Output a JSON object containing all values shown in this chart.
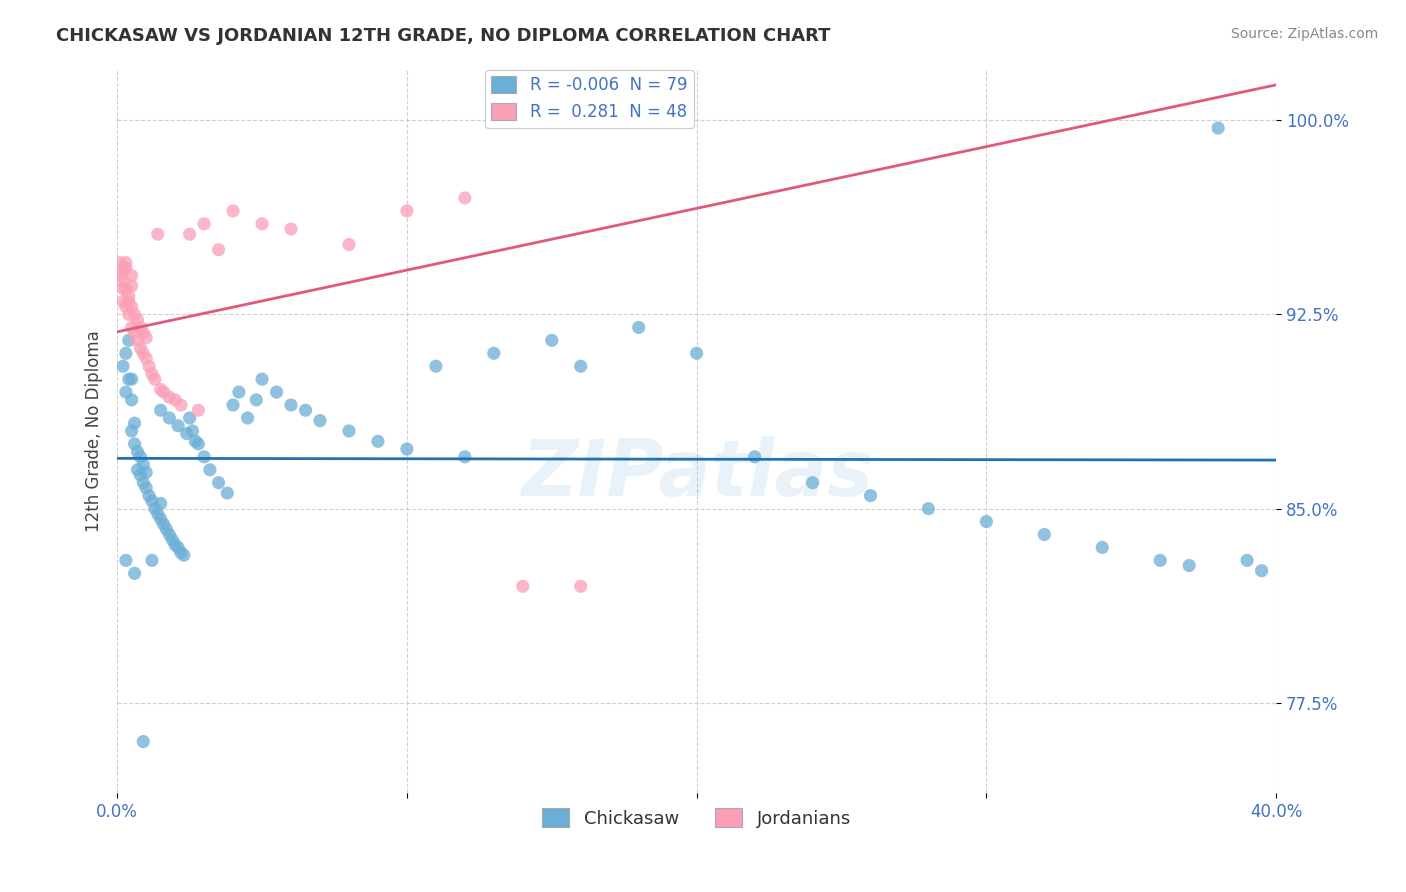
{
  "title": "CHICKASAW VS JORDANIAN 12TH GRADE, NO DIPLOMA CORRELATION CHART",
  "source": "Source: ZipAtlas.com",
  "ylabel": "12th Grade, No Diploma",
  "xlim": [
    0.0,
    0.4
  ],
  "ylim": [
    0.74,
    1.02
  ],
  "yticks": [
    0.775,
    0.85,
    0.925,
    1.0
  ],
  "ytick_labels": [
    "77.5%",
    "85.0%",
    "92.5%",
    "100.0%"
  ],
  "legend_blue_r": "-0.006",
  "legend_blue_n": "79",
  "legend_pink_r": "0.281",
  "legend_pink_n": "48",
  "blue_color": "#6baed6",
  "pink_color": "#fa9fb5",
  "trendline_blue_color": "#2171b5",
  "trendline_pink_color": "#e05a7a",
  "watermark": "ZIPatlas",
  "chickasaw_x": [
    0.002,
    0.003,
    0.003,
    0.004,
    0.004,
    0.005,
    0.005,
    0.005,
    0.006,
    0.006,
    0.007,
    0.007,
    0.008,
    0.008,
    0.009,
    0.009,
    0.01,
    0.01,
    0.011,
    0.012,
    0.013,
    0.014,
    0.015,
    0.015,
    0.016,
    0.017,
    0.018,
    0.019,
    0.02,
    0.021,
    0.022,
    0.023,
    0.025,
    0.026,
    0.028,
    0.03,
    0.032,
    0.035,
    0.038,
    0.04,
    0.042,
    0.045,
    0.048,
    0.05,
    0.055,
    0.06,
    0.065,
    0.07,
    0.08,
    0.09,
    0.1,
    0.11,
    0.12,
    0.13,
    0.15,
    0.16,
    0.18,
    0.2,
    0.22,
    0.24,
    0.26,
    0.28,
    0.3,
    0.32,
    0.34,
    0.36,
    0.37,
    0.38,
    0.39,
    0.395,
    0.003,
    0.006,
    0.009,
    0.012,
    0.015,
    0.018,
    0.021,
    0.024,
    0.027
  ],
  "chickasaw_y": [
    0.905,
    0.91,
    0.895,
    0.9,
    0.915,
    0.88,
    0.892,
    0.9,
    0.875,
    0.883,
    0.865,
    0.872,
    0.863,
    0.87,
    0.86,
    0.867,
    0.858,
    0.864,
    0.855,
    0.853,
    0.85,
    0.848,
    0.846,
    0.852,
    0.844,
    0.842,
    0.84,
    0.838,
    0.836,
    0.835,
    0.833,
    0.832,
    0.885,
    0.88,
    0.875,
    0.87,
    0.865,
    0.86,
    0.856,
    0.89,
    0.895,
    0.885,
    0.892,
    0.9,
    0.895,
    0.89,
    0.888,
    0.884,
    0.88,
    0.876,
    0.873,
    0.905,
    0.87,
    0.91,
    0.915,
    0.905,
    0.92,
    0.91,
    0.87,
    0.86,
    0.855,
    0.85,
    0.845,
    0.84,
    0.835,
    0.83,
    0.828,
    0.997,
    0.83,
    0.826,
    0.83,
    0.825,
    0.76,
    0.83,
    0.888,
    0.885,
    0.882,
    0.879,
    0.876
  ],
  "jordanian_x": [
    0.001,
    0.001,
    0.002,
    0.002,
    0.002,
    0.003,
    0.003,
    0.003,
    0.004,
    0.004,
    0.005,
    0.005,
    0.005,
    0.006,
    0.006,
    0.007,
    0.007,
    0.008,
    0.008,
    0.009,
    0.009,
    0.01,
    0.01,
    0.011,
    0.012,
    0.013,
    0.014,
    0.015,
    0.016,
    0.018,
    0.02,
    0.022,
    0.025,
    0.028,
    0.03,
    0.035,
    0.04,
    0.05,
    0.06,
    0.08,
    0.1,
    0.12,
    0.14,
    0.16,
    0.002,
    0.003,
    0.004,
    0.005
  ],
  "jordanian_y": [
    0.94,
    0.945,
    0.93,
    0.935,
    0.942,
    0.928,
    0.935,
    0.943,
    0.925,
    0.93,
    0.92,
    0.928,
    0.936,
    0.918,
    0.925,
    0.915,
    0.923,
    0.912,
    0.92,
    0.91,
    0.918,
    0.908,
    0.916,
    0.905,
    0.902,
    0.9,
    0.956,
    0.896,
    0.895,
    0.893,
    0.892,
    0.89,
    0.956,
    0.888,
    0.96,
    0.95,
    0.965,
    0.96,
    0.958,
    0.952,
    0.965,
    0.97,
    0.82,
    0.82,
    0.938,
    0.945,
    0.932,
    0.94
  ]
}
